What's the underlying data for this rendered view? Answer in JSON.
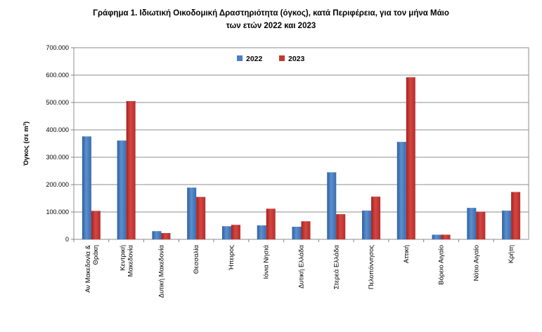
{
  "title_line1": "Γράφημα 1.  Ιδιωτική Οικοδομική Δραστηριότητα (όγκος), κατά Περιφέρεια, για τον μήνα Μάιο",
  "title_line2": "των ετών 2022 και 2023",
  "chart_data": {
    "type": "bar",
    "title": "Γράφημα 1.  Ιδιωτική Οικοδομική Δραστηριότητα (όγκος), κατά Περιφέρεια, για τον μήνα Μάιο των ετών 2022 και 2023",
    "ylabel": "Όγκος (σε m³)",
    "xlabel": "",
    "ylim": [
      0,
      700000
    ],
    "yticks": [
      "0",
      "100.000",
      "200.000",
      "300.000",
      "400.000",
      "500.000",
      "600.000",
      "700.000"
    ],
    "grid": true,
    "legend_position": "top-center",
    "categories": [
      [
        "Αν Μακεδονία &",
        "Θράκη"
      ],
      [
        "Κεντρική",
        "Μακεδονία"
      ],
      [
        "Δυτική Μακεδονία"
      ],
      [
        "Θεσσαλία"
      ],
      [
        "Ήπειρος"
      ],
      [
        "Ιόνια Νησιά"
      ],
      [
        "Δυτική Ελλάδα"
      ],
      [
        "Στερεά Ελλάδα"
      ],
      [
        "Πελοπόννησος"
      ],
      [
        "Αττική"
      ],
      [
        "Βόρειο Αιγαίο"
      ],
      [
        "Νότιο Αιγαίο"
      ],
      [
        "Κρήτη"
      ]
    ],
    "series": [
      {
        "name": "2022",
        "color": "#4a7ebf",
        "values": [
          376000,
          361000,
          30000,
          189000,
          48000,
          51000,
          46000,
          245000,
          105000,
          356000,
          17000,
          115000,
          105000
        ]
      },
      {
        "name": "2023",
        "color": "#c0392b",
        "values": [
          104000,
          505000,
          23000,
          155000,
          53000,
          112000,
          66000,
          92000,
          156000,
          592000,
          17000,
          101000,
          173000
        ]
      }
    ]
  }
}
